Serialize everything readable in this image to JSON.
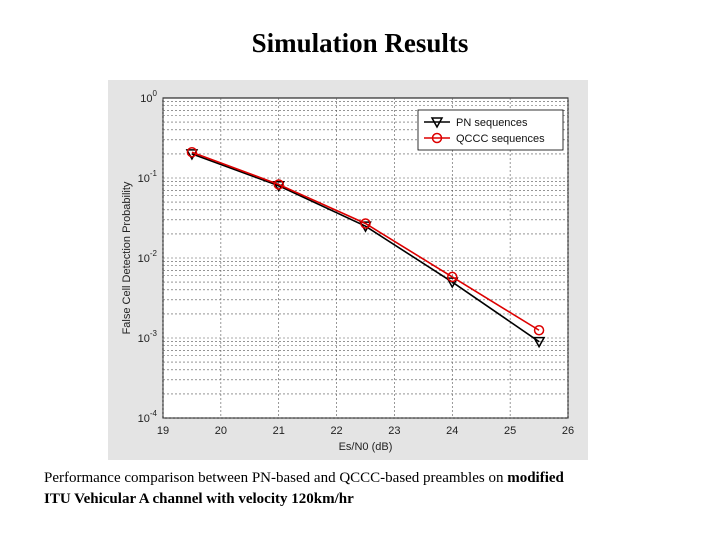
{
  "slide": {
    "title": "Simulation Results",
    "caption_normal": "Performance comparison between PN-based and QCCC-based preambles on ",
    "caption_bold_1": "modified",
    "caption_bold_2": "ITU Vehicular A channel with velocity 120km/hr"
  },
  "chart_data": {
    "type": "line",
    "xlabel": "Es/N0 (dB)",
    "ylabel": "False Cell Detection Probability",
    "xlim": [
      19,
      26
    ],
    "ylim": [
      0.0001,
      1
    ],
    "yscale": "log",
    "xticks": [
      19,
      20,
      21,
      22,
      23,
      24,
      25,
      26
    ],
    "yticks": [
      {
        "value": 1,
        "base": "10",
        "exp": "0"
      },
      {
        "value": 0.1,
        "base": "10",
        "exp": "-1"
      },
      {
        "value": 0.01,
        "base": "10",
        "exp": "-2"
      },
      {
        "value": 0.001,
        "base": "10",
        "exp": "-3"
      },
      {
        "value": 0.0001,
        "base": "10",
        "exp": "-4"
      }
    ],
    "grid": true,
    "legend_position": "top-right",
    "series": [
      {
        "name": "PN sequences",
        "color": "#000000",
        "marker": "triangle-down",
        "x": [
          19.5,
          21,
          22.5,
          24,
          25.5
        ],
        "y": [
          0.2,
          0.08,
          0.025,
          0.005,
          0.0009
        ]
      },
      {
        "name": "QCCC sequences",
        "color": "#dd0000",
        "marker": "circle",
        "x": [
          19.5,
          21,
          22.5,
          24,
          25.5
        ],
        "y": [
          0.21,
          0.083,
          0.027,
          0.0058,
          0.00125
        ]
      }
    ]
  }
}
